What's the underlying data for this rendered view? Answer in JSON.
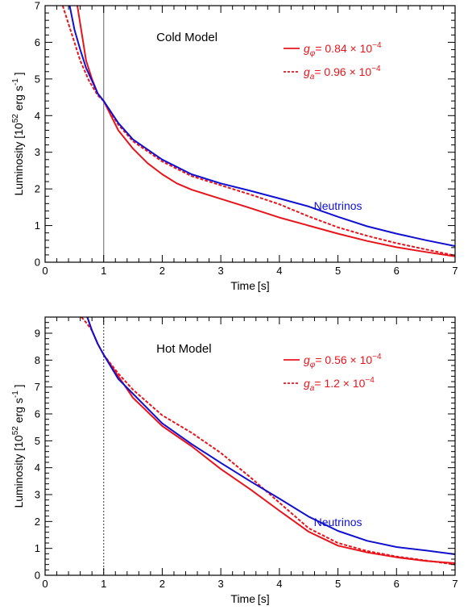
{
  "colors": {
    "red": "#e8141b",
    "blue": "#1010d0",
    "axis": "#000000",
    "marker": "#808080"
  },
  "chart_data": [
    {
      "type": "line",
      "title": "Cold Model",
      "xlabel": "Time [s]",
      "ylabel": "Luminosity [10^52 erg s^-1]",
      "xlim": [
        0,
        7
      ],
      "ylim": [
        0,
        7
      ],
      "xticks": [
        0,
        1,
        2,
        3,
        4,
        5,
        6,
        7
      ],
      "yticks": [
        0,
        1,
        2,
        3,
        4,
        5,
        6,
        7
      ],
      "marker_x": 1,
      "marker_style": "solid",
      "legend": [
        {
          "sym": "g",
          "sub": "φ",
          "text": "= 0.84 × 10",
          "exp": "−4",
          "style": "solid"
        },
        {
          "sym": "g",
          "sub": "a",
          "text": "= 0.96 × 10",
          "exp": "−4",
          "style": "dashed"
        }
      ],
      "annotation": "Neutrinos",
      "series": [
        {
          "color": "red",
          "style": "solid",
          "x": [
            0.55,
            0.62,
            0.7,
            0.8,
            0.9,
            1.0,
            1.25,
            1.5,
            1.75,
            2.0,
            2.25,
            2.5,
            3.0,
            3.5,
            4.0,
            4.5,
            5.0,
            5.5,
            6.0,
            6.5,
            7.0
          ],
          "y": [
            7.0,
            6.3,
            5.5,
            5.0,
            4.6,
            4.4,
            3.6,
            3.1,
            2.7,
            2.4,
            2.15,
            1.98,
            1.73,
            1.48,
            1.22,
            1.0,
            0.78,
            0.58,
            0.41,
            0.28,
            0.16
          ]
        },
        {
          "color": "red",
          "style": "dashed",
          "x": [
            0.3,
            0.4,
            0.5,
            0.6,
            0.75,
            0.9,
            1.0,
            1.25,
            1.5,
            2.0,
            2.5,
            3.0,
            3.5,
            4.0,
            4.5,
            5.0,
            5.5,
            6.0,
            6.5,
            7.0
          ],
          "y": [
            7.0,
            6.5,
            6.0,
            5.5,
            4.95,
            4.55,
            4.4,
            3.75,
            3.3,
            2.75,
            2.35,
            2.1,
            1.85,
            1.58,
            1.25,
            0.95,
            0.72,
            0.52,
            0.35,
            0.18
          ]
        },
        {
          "color": "blue",
          "style": "solid",
          "x": [
            0.42,
            0.5,
            0.6,
            0.7,
            0.8,
            0.9,
            1.0,
            1.25,
            1.5,
            2.0,
            2.5,
            3.0,
            3.5,
            4.0,
            4.5,
            5.0,
            5.5,
            6.0,
            6.5,
            7.0
          ],
          "y": [
            7.0,
            6.35,
            5.8,
            5.3,
            4.95,
            4.6,
            4.4,
            3.8,
            3.35,
            2.8,
            2.4,
            2.15,
            1.95,
            1.74,
            1.52,
            1.24,
            0.98,
            0.78,
            0.6,
            0.44
          ]
        }
      ]
    },
    {
      "type": "line",
      "title": "Hot Model",
      "xlabel": "Time [s]",
      "ylabel": "Luminosity [10^52 erg s^-1]",
      "xlim": [
        0,
        7
      ],
      "ylim": [
        0,
        9.6
      ],
      "xticks": [
        0,
        1,
        2,
        3,
        4,
        5,
        6,
        7
      ],
      "yticks": [
        0,
        1,
        2,
        3,
        4,
        5,
        6,
        7,
        8,
        9
      ],
      "marker_x": 1,
      "marker_style": "dotted",
      "legend": [
        {
          "sym": "g",
          "sub": "φ",
          "text": "= 0.56 × 10",
          "exp": "−4",
          "style": "solid"
        },
        {
          "sym": "g",
          "sub": "a",
          "text": "= 1.2 × 10",
          "exp": "−4",
          "style": "dashed"
        }
      ],
      "annotation": "Neutrinos",
      "series": [
        {
          "color": "red",
          "style": "solid",
          "x": [
            0.72,
            0.8,
            0.9,
            1.0,
            1.25,
            1.5,
            2.0,
            2.5,
            3.0,
            3.5,
            4.0,
            4.5,
            5.0,
            5.5,
            6.0,
            6.5,
            7.0
          ],
          "y": [
            9.6,
            9.1,
            8.6,
            8.2,
            7.4,
            6.6,
            5.55,
            4.8,
            3.95,
            3.2,
            2.4,
            1.62,
            1.1,
            0.85,
            0.67,
            0.53,
            0.45
          ]
        },
        {
          "color": "red",
          "style": "dashed",
          "x": [
            0.62,
            0.7,
            0.8,
            0.9,
            1.0,
            1.25,
            1.5,
            2.0,
            2.5,
            3.0,
            3.5,
            4.0,
            4.5,
            5.0,
            5.5,
            6.0,
            6.5,
            7.0
          ],
          "y": [
            9.6,
            9.4,
            9.1,
            8.6,
            8.2,
            7.5,
            6.9,
            5.95,
            5.3,
            4.55,
            3.65,
            2.7,
            1.75,
            1.2,
            0.9,
            0.7,
            0.55,
            0.4
          ]
        },
        {
          "color": "blue",
          "style": "solid",
          "x": [
            0.72,
            0.8,
            0.9,
            1.0,
            1.25,
            1.5,
            2.0,
            2.5,
            3.0,
            3.5,
            4.0,
            4.5,
            5.0,
            5.5,
            6.0,
            6.5,
            7.0
          ],
          "y": [
            9.6,
            9.1,
            8.6,
            8.2,
            7.3,
            6.75,
            5.65,
            4.88,
            4.18,
            3.5,
            2.85,
            2.18,
            1.65,
            1.28,
            1.05,
            0.92,
            0.78
          ]
        }
      ]
    }
  ]
}
